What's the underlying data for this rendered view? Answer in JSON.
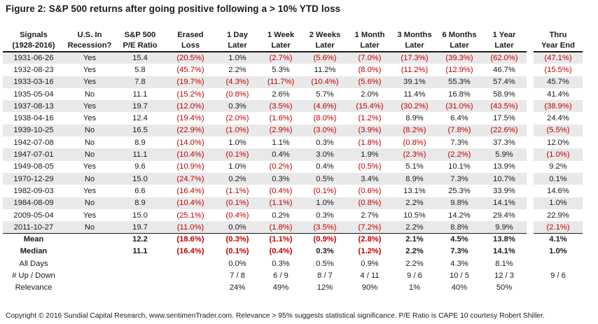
{
  "title": "Figure 2: S&P 500 returns after going positive following a > 10% YTD loss",
  "headers": [
    [
      "Signals",
      "(1928-2016)"
    ],
    [
      "U.S. In",
      "Recession?"
    ],
    [
      "S&P 500",
      "P/E Ratio"
    ],
    [
      "Erased",
      "Loss"
    ],
    [
      "1 Day",
      "Later"
    ],
    [
      "1 Week",
      "Later"
    ],
    [
      "2 Weeks",
      "Later"
    ],
    [
      "1 Month",
      "Later"
    ],
    [
      "3 Months",
      "Later"
    ],
    [
      "6 Months",
      "Later"
    ],
    [
      "1 Year",
      "Later"
    ],
    [
      "Thru",
      "Year End"
    ]
  ],
  "rows": [
    [
      "1931-06-26",
      "Yes",
      "15.4",
      "(20.5%)",
      "1.0%",
      "(2.7%)",
      "(5.6%)",
      "(7.0%)",
      "(17.3%)",
      "(39.3%)",
      "(62.0%)",
      "(47.1%)"
    ],
    [
      "1932-08-23",
      "Yes",
      "5.8",
      "(45.7%)",
      "2.2%",
      "5.3%",
      "11.2%",
      "(8.0%)",
      "(11.2%)",
      "(12.9%)",
      "46.7%",
      "(15.5%)"
    ],
    [
      "1933-03-16",
      "Yes",
      "7.8",
      "(19.7%)",
      "(4.3%)",
      "(11.7%)",
      "(10.4%)",
      "(5.6%)",
      "39.1%",
      "55.3%",
      "57.4%",
      "45.7%"
    ],
    [
      "1935-05-04",
      "No",
      "11.1",
      "(15.2%)",
      "(0.8%)",
      "2.6%",
      "5.7%",
      "2.0%",
      "11.4%",
      "16.8%",
      "58.9%",
      "41.4%"
    ],
    [
      "1937-08-13",
      "Yes",
      "19.7",
      "(12.0%)",
      "0.3%",
      "(3.5%)",
      "(4.6%)",
      "(15.4%)",
      "(30.2%)",
      "(31.0%)",
      "(43.5%)",
      "(38.9%)"
    ],
    [
      "1938-04-16",
      "Yes",
      "12.4",
      "(19.4%)",
      "(2.0%)",
      "(1.6%)",
      "(8.0%)",
      "(1.2%)",
      "8.9%",
      "6.4%",
      "17.5%",
      "24.4%"
    ],
    [
      "1939-10-25",
      "No",
      "16.5",
      "(22.9%)",
      "(1.0%)",
      "(2.9%)",
      "(3.0%)",
      "(3.9%)",
      "(8.2%)",
      "(7.8%)",
      "(22.6%)",
      "(5.5%)"
    ],
    [
      "1942-07-08",
      "No",
      "8.9",
      "(14.0%)",
      "1.0%",
      "1.1%",
      "0.3%",
      "(1.8%)",
      "(0.8%)",
      "7.3%",
      "37.3%",
      "12.0%"
    ],
    [
      "1947-07-01",
      "No",
      "11.1",
      "(10.4%)",
      "(0.1%)",
      "0.4%",
      "3.0%",
      "1.9%",
      "(2.3%)",
      "(2.2%)",
      "5.9%",
      "(1.0%)"
    ],
    [
      "1949-08-05",
      "Yes",
      "9.6",
      "(10.9%)",
      "1.0%",
      "(0.2%)",
      "0.4%",
      "(0.5%)",
      "5.1%",
      "10.1%",
      "13.9%",
      "9.2%"
    ],
    [
      "1970-12-29",
      "No",
      "15.0",
      "(24.7%)",
      "0.2%",
      "0.3%",
      "0.5%",
      "3.4%",
      "8.9%",
      "7.3%",
      "10.7%",
      "0.1%"
    ],
    [
      "1982-09-03",
      "Yes",
      "6.6",
      "(16.4%)",
      "(1.1%)",
      "(0.4%)",
      "(0.1%)",
      "(0.6%)",
      "13.1%",
      "25.3%",
      "33.9%",
      "14.6%"
    ],
    [
      "1984-08-09",
      "No",
      "8.9",
      "(10.4%)",
      "(0.1%)",
      "(1.1%)",
      "1.0%",
      "(0.8%)",
      "2.2%",
      "9.8%",
      "14.1%",
      "1.0%"
    ],
    [
      "2009-05-04",
      "Yes",
      "15.0",
      "(25.1%)",
      "(0.4%)",
      "0.2%",
      "0.3%",
      "2.7%",
      "10.5%",
      "14.2%",
      "29.4%",
      "22.9%"
    ],
    [
      "2011-10-27",
      "No",
      "19.7",
      "(11.0%)",
      "0.0%",
      "(1.8%)",
      "(3.5%)",
      "(7.2%)",
      "2.2%",
      "8.8%",
      "9.9%",
      "(2.1%)"
    ]
  ],
  "stats": [
    {
      "label": "Mean",
      "cells": [
        "",
        "12.2",
        "(18.6%)",
        "(0.3%)",
        "(1.1%)",
        "(0.9%)",
        "(2.8%)",
        "2.1%",
        "4.5%",
        "13.8%",
        "4.1%"
      ]
    },
    {
      "label": "Median",
      "cells": [
        "",
        "11.1",
        "(16.4%)",
        "(0.1%)",
        "(0.4%)",
        "0.3%",
        "(1.2%)",
        "2.2%",
        "7.3%",
        "14.1%",
        "1.0%"
      ]
    }
  ],
  "extras": [
    {
      "label": "All Days",
      "cells": [
        "",
        "",
        "",
        "0.0%",
        "0.3%",
        "0.5%",
        "0.9%",
        "2.2%",
        "4.3%",
        "8.1%",
        ""
      ]
    },
    {
      "label": "# Up / Down",
      "cells": [
        "",
        "",
        "",
        "7 / 8",
        "6 / 9",
        "8 / 7",
        "4 / 11",
        "9 / 6",
        "10 / 5",
        "12 / 3",
        "9 / 6"
      ]
    },
    {
      "label": "Relevance",
      "cells": [
        "",
        "",
        "",
        "24%",
        "49%",
        "12%",
        "90%",
        "1%",
        "40%",
        "50%",
        ""
      ]
    }
  ],
  "footer": "Copyright © 2016 Sundial Capital Research, www.sentimenTrader.com. Relevance > 95% suggests statistical significance. P/E Ratio is CAPE 10 courtesy Robert Shiller.",
  "colors": {
    "negative": "#c00000",
    "stripe": "#e9e9e9",
    "text": "#1a1a1a"
  }
}
